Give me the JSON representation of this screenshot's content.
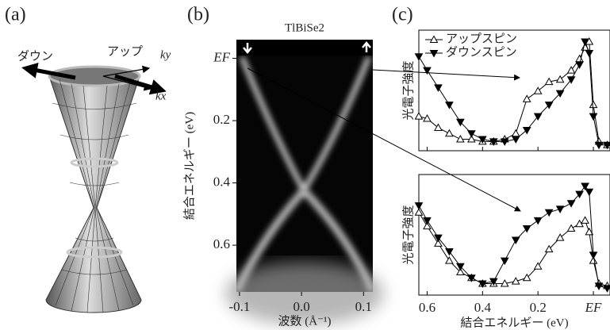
{
  "panel_labels": [
    "(a)",
    "(b)",
    "(c)"
  ],
  "cone": {
    "down_label": "ダウン",
    "up_label": "アップ",
    "ky_label": "ky",
    "kx_label": "kx"
  },
  "chart_data": [
    {
      "type": "image",
      "title": "TlBiSe2",
      "xlabel": "波数 (Å⁻¹)",
      "ylabel": "結合エネルギー (eV)",
      "xlim": [
        -0.105,
        0.115
      ],
      "xticks": [
        -0.1,
        {
          "value": 0,
          "label": "0.0"
        },
        0.1
      ],
      "ylim": [
        -0.06,
        0.75
      ],
      "y_inverted": true,
      "yticks": [
        {
          "value": 0,
          "label": "EF"
        },
        0.2,
        0.4,
        0.6
      ]
    },
    {
      "type": "line",
      "ylabel": "光電子強度",
      "xlim": [
        0.63,
        -0.06
      ],
      "ylim": [
        0,
        1.05
      ],
      "xticks": [
        0.6,
        0.4,
        0.2,
        0
      ],
      "x_tick_labels": false,
      "legend": "upper-left",
      "x": [
        0.63,
        0.6,
        0.56,
        0.52,
        0.48,
        0.44,
        0.4,
        0.36,
        0.32,
        0.28,
        0.24,
        0.2,
        0.16,
        0.12,
        0.08,
        0.05,
        0.03,
        0.015,
        0.0,
        -0.02,
        -0.05
      ],
      "series": [
        {
          "name": "アップスピン",
          "color": "#000000",
          "marker": "open-up",
          "values": [
            0.3,
            0.28,
            0.2,
            0.15,
            0.1,
            0.1,
            0.08,
            0.08,
            0.1,
            0.15,
            0.45,
            0.52,
            0.6,
            0.62,
            0.7,
            0.8,
            0.9,
            0.95,
            0.4,
            0.08,
            0.05
          ]
        },
        {
          "name": "ダウンスピン",
          "color": "#000000",
          "marker": "filled-down",
          "values": [
            0.82,
            0.7,
            0.55,
            0.4,
            0.25,
            0.15,
            0.1,
            0.08,
            0.08,
            0.1,
            0.18,
            0.3,
            0.4,
            0.5,
            0.62,
            0.75,
            0.95,
            0.85,
            0.3,
            0.05,
            0.05
          ]
        }
      ]
    },
    {
      "type": "line",
      "ylabel": "光電子強度",
      "xlabel": "結合エネルギー (eV)",
      "xlim": [
        0.63,
        -0.06
      ],
      "ylim": [
        0,
        1.05
      ],
      "xticks": [
        0.6,
        0.4,
        0.2,
        {
          "value": 0,
          "label": "EF"
        }
      ],
      "x_tick_labels": true,
      "x": [
        0.63,
        0.6,
        0.56,
        0.52,
        0.48,
        0.44,
        0.4,
        0.36,
        0.32,
        0.28,
        0.24,
        0.2,
        0.16,
        0.12,
        0.08,
        0.05,
        0.03,
        0.015,
        0.0,
        -0.02,
        -0.05
      ],
      "series": [
        {
          "color": "#000000",
          "marker": "open-up",
          "values": [
            0.72,
            0.6,
            0.45,
            0.3,
            0.2,
            0.15,
            0.1,
            0.1,
            0.1,
            0.12,
            0.15,
            0.25,
            0.4,
            0.5,
            0.58,
            0.62,
            0.65,
            0.55,
            0.3,
            0.1,
            0.08
          ]
        },
        {
          "color": "#000000",
          "marker": "filled-down",
          "values": [
            0.78,
            0.65,
            0.5,
            0.38,
            0.25,
            0.15,
            0.1,
            0.12,
            0.3,
            0.48,
            0.58,
            0.65,
            0.72,
            0.75,
            0.8,
            0.88,
            0.95,
            0.9,
            0.35,
            0.08,
            0.06
          ]
        }
      ]
    }
  ]
}
